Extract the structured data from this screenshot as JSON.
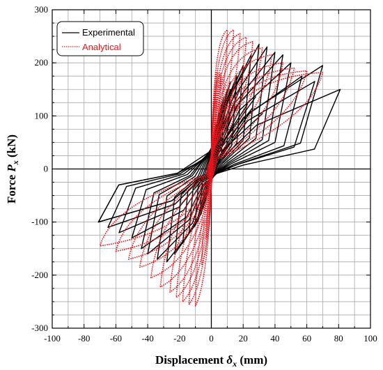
{
  "chart_data": {
    "type": "line",
    "title": "",
    "xlabel_parts": [
      "Displacement ",
      "δ",
      "x",
      " (mm)"
    ],
    "ylabel_parts": [
      "Force ",
      "P",
      "x",
      " (kN)"
    ],
    "xlim": [
      -100,
      100
    ],
    "ylim": [
      -300,
      300
    ],
    "x_major_ticks": [
      -100,
      -80,
      -60,
      -40,
      -20,
      0,
      20,
      40,
      60,
      80,
      100
    ],
    "y_major_ticks": [
      -300,
      -200,
      -100,
      0,
      100,
      200,
      300
    ],
    "x_grid_step": 10,
    "y_grid_step": 25,
    "grid": true,
    "legend_position": "top-left",
    "series": [
      {
        "name": "Experimental",
        "color": "#000000",
        "style": "solid",
        "cycles": [
          {
            "amp_pos": 5,
            "peak_pos": 90,
            "amp_neg": -4,
            "peak_neg": -60
          },
          {
            "amp_pos": 8,
            "peak_pos": 120,
            "amp_neg": -7,
            "peak_neg": -80
          },
          {
            "amp_pos": 12,
            "peak_pos": 150,
            "amp_neg": -10,
            "peak_neg": -100
          },
          {
            "amp_pos": 16,
            "peak_pos": 175,
            "amp_neg": -14,
            "peak_neg": -120
          },
          {
            "amp_pos": 20,
            "peak_pos": 195,
            "amp_neg": -18,
            "peak_neg": -140
          },
          {
            "amp_pos": 25,
            "peak_pos": 215,
            "amp_neg": -23,
            "peak_neg": -160
          },
          {
            "amp_pos": 30,
            "peak_pos": 235,
            "amp_neg": -28,
            "peak_neg": -175
          },
          {
            "amp_pos": 35,
            "peak_pos": 230,
            "amp_neg": -34,
            "peak_neg": -170
          },
          {
            "amp_pos": 40,
            "peak_pos": 220,
            "amp_neg": -40,
            "peak_neg": -160
          },
          {
            "amp_pos": 45,
            "peak_pos": 215,
            "amp_neg": -44,
            "peak_neg": -150
          },
          {
            "amp_pos": 50,
            "peak_pos": 200,
            "amp_neg": -50,
            "peak_neg": -130
          },
          {
            "amp_pos": 57,
            "peak_pos": 175,
            "amp_neg": -58,
            "peak_neg": -120
          },
          {
            "amp_pos": 65,
            "peak_pos": 165,
            "amp_neg": -65,
            "peak_neg": -110
          },
          {
            "amp_pos": 70,
            "peak_pos": 195,
            "amp_neg": -71,
            "peak_neg": -100
          },
          {
            "amp_pos": 81,
            "peak_pos": 150,
            "amp_neg": -71,
            "peak_neg": -100
          }
        ]
      },
      {
        "name": "Analytical",
        "color": "#e8141c",
        "style": "dotted",
        "cycles": [
          {
            "amp_pos": 3,
            "peak_pos": 130,
            "amp_neg": -3,
            "peak_neg": -130
          },
          {
            "amp_pos": 6,
            "peak_pos": 180,
            "amp_neg": -6,
            "peak_neg": -180
          },
          {
            "amp_pos": 10,
            "peak_pos": 262,
            "amp_neg": -10,
            "peak_neg": -258
          },
          {
            "amp_pos": 14,
            "peak_pos": 262,
            "amp_neg": -14,
            "peak_neg": -255
          },
          {
            "amp_pos": 18,
            "peak_pos": 255,
            "amp_neg": -18,
            "peak_neg": -250
          },
          {
            "amp_pos": 22,
            "peak_pos": 248,
            "amp_neg": -22,
            "peak_neg": -242
          },
          {
            "amp_pos": 26,
            "peak_pos": 240,
            "amp_neg": -26,
            "peak_neg": -232
          },
          {
            "amp_pos": 32,
            "peak_pos": 228,
            "amp_neg": -32,
            "peak_neg": -222
          },
          {
            "amp_pos": 38,
            "peak_pos": 215,
            "amp_neg": -38,
            "peak_neg": -205
          },
          {
            "amp_pos": 45,
            "peak_pos": 200,
            "amp_neg": -45,
            "peak_neg": -185
          },
          {
            "amp_pos": 52,
            "peak_pos": 190,
            "amp_neg": -52,
            "peak_neg": -170
          },
          {
            "amp_pos": 60,
            "peak_pos": 185,
            "amp_neg": -60,
            "peak_neg": -155
          },
          {
            "amp_pos": 70,
            "peak_pos": 182,
            "amp_neg": -70,
            "peak_neg": -145
          }
        ]
      }
    ]
  }
}
